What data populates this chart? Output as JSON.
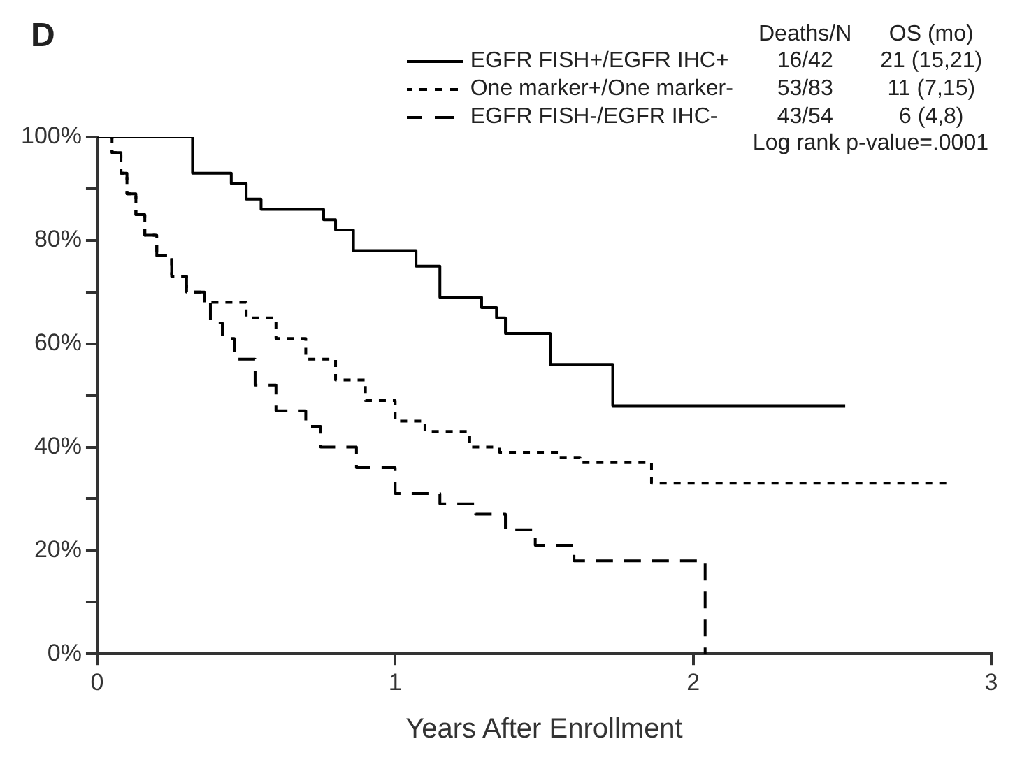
{
  "chart_data": {
    "type": "step",
    "title": "D",
    "xlabel": "Years After Enrollment",
    "xlim": [
      0,
      3
    ],
    "xticks": [
      0,
      1,
      2,
      3
    ],
    "ylim": [
      0,
      100
    ],
    "yticks": [
      {
        "value": 0,
        "label": "0%"
      },
      {
        "value": 10,
        "label": null
      },
      {
        "value": 20,
        "label": "20%"
      },
      {
        "value": 30,
        "label": null
      },
      {
        "value": 40,
        "label": "40%"
      },
      {
        "value": 50,
        "label": null
      },
      {
        "value": 60,
        "label": "60%"
      },
      {
        "value": 70,
        "label": null
      },
      {
        "value": 80,
        "label": "80%"
      },
      {
        "value": 90,
        "label": null
      },
      {
        "value": 100,
        "label": "100%"
      }
    ],
    "grid": false,
    "legend": "top right",
    "marker": "none",
    "series": [
      {
        "name": "EGFR FISH+/EGFR IHC+",
        "color": "#000000",
        "line_style": "solid",
        "x": [
          0,
          0.32,
          0.45,
          0.5,
          0.55,
          0.76,
          0.8,
          0.86,
          1.07,
          1.15,
          1.29,
          1.34,
          1.37,
          1.52,
          1.73,
          2.51
        ],
        "values": [
          100,
          93,
          91,
          88,
          86,
          84,
          82,
          78,
          75,
          69,
          67,
          65,
          62,
          56,
          48,
          48
        ]
      },
      {
        "name": "One marker+/One marker-",
        "color": "#000000",
        "line_style": "dotted",
        "x": [
          0,
          0.05,
          0.08,
          0.1,
          0.13,
          0.16,
          0.2,
          0.25,
          0.3,
          0.36,
          0.5,
          0.6,
          0.7,
          0.8,
          0.9,
          1.0,
          1.1,
          1.25,
          1.35,
          1.55,
          1.62,
          1.86,
          2.86
        ],
        "values": [
          100,
          97,
          93,
          89,
          85,
          81,
          77,
          73,
          70,
          68,
          65,
          61,
          57,
          53,
          49,
          45,
          43,
          40,
          39,
          38,
          37,
          33,
          33
        ]
      },
      {
        "name": "EGFR FISH-/EGFR IHC-",
        "color": "#000000",
        "line_style": "dashed",
        "x": [
          0,
          0.05,
          0.08,
          0.1,
          0.13,
          0.16,
          0.2,
          0.25,
          0.3,
          0.36,
          0.38,
          0.42,
          0.46,
          0.53,
          0.6,
          0.7,
          0.75,
          0.87,
          1.0,
          1.15,
          1.27,
          1.37,
          1.47,
          1.6,
          2.04
        ],
        "values": [
          100,
          97,
          93,
          89,
          85,
          81,
          77,
          73,
          70,
          68,
          64,
          61,
          57,
          52,
          47,
          44,
          40,
          36,
          31,
          29,
          27,
          24,
          21,
          18,
          0
        ]
      }
    ],
    "annotations": [
      "Deaths/N",
      "OS (mo)",
      "16/42",
      "21 (15,21)",
      "53/83",
      "11 (7,15)",
      "43/54",
      "6 (4,8)",
      "Log rank p-value=.0001"
    ]
  }
}
